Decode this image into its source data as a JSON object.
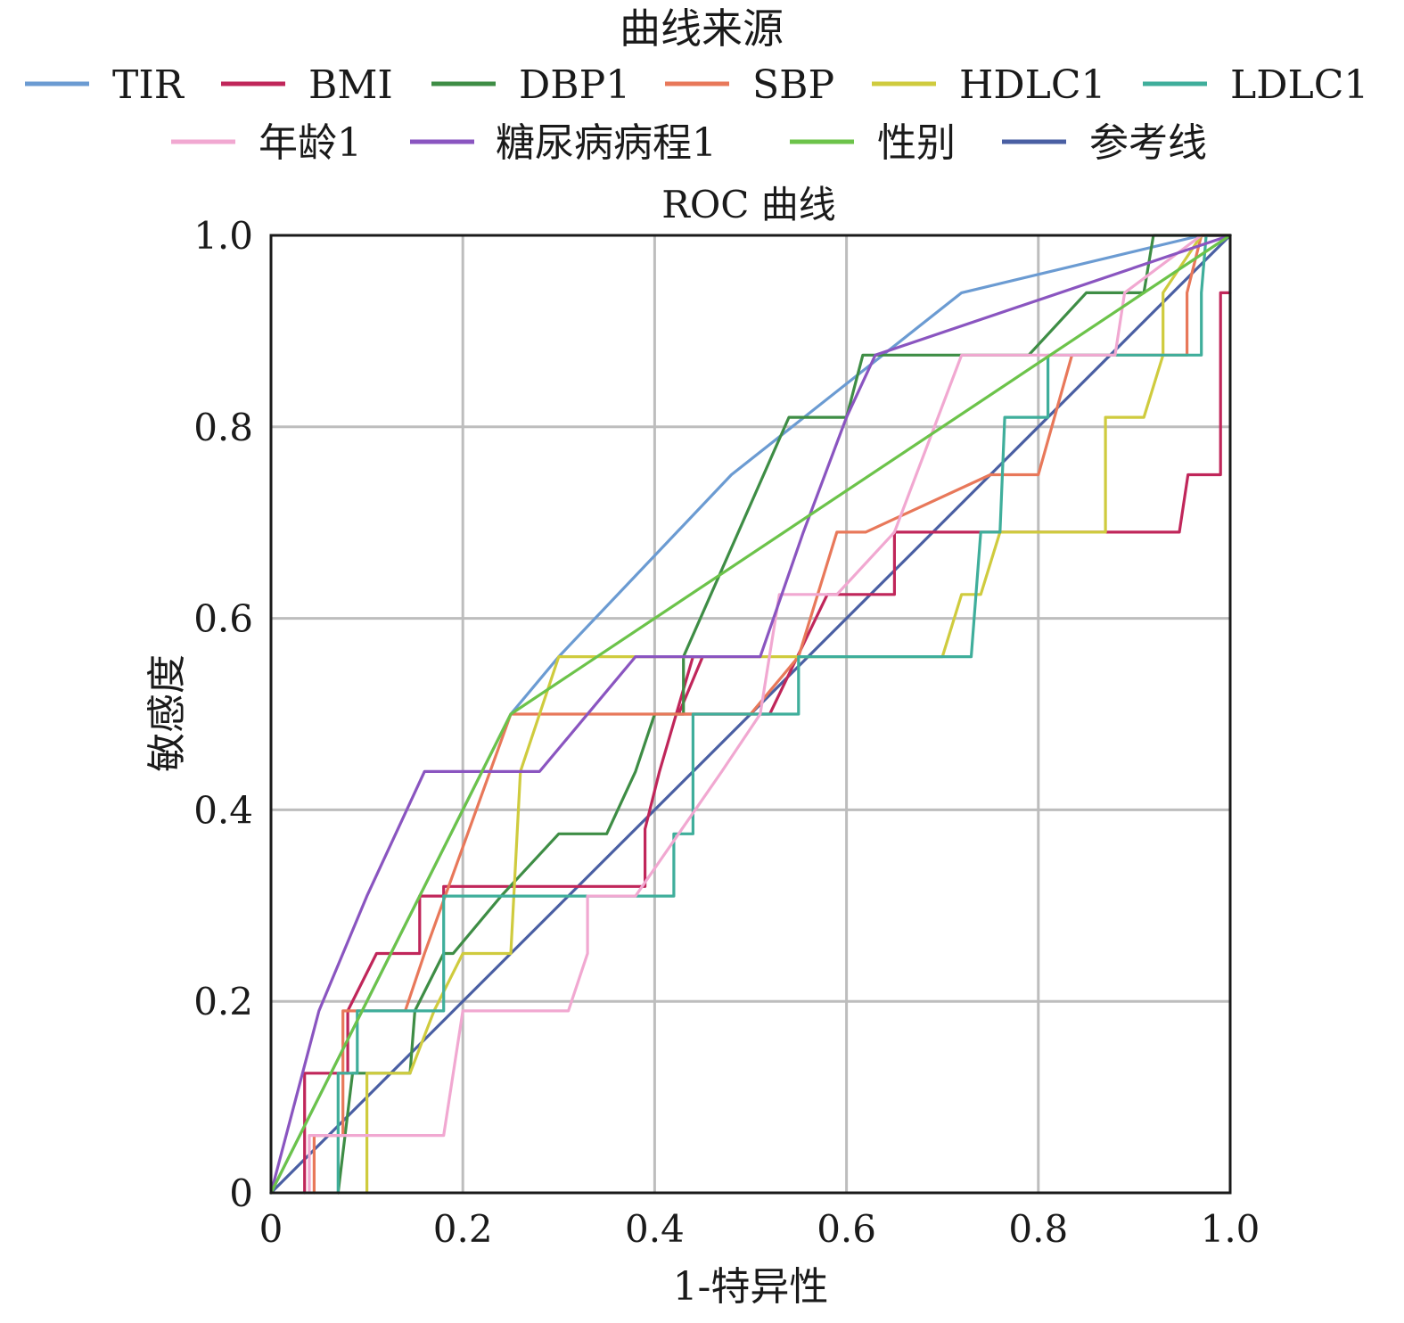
{
  "chart_data": {
    "type": "line",
    "title": "ROC 曲线",
    "legend_title": "曲线来源",
    "legend_position": "top",
    "xlabel": "1-特异性",
    "ylabel": "敏感度",
    "xlim": [
      0,
      1
    ],
    "ylim": [
      0,
      1
    ],
    "grid": true,
    "x_ticks": [
      {
        "value": 0,
        "label": "0"
      },
      {
        "value": 0.2,
        "label": "0.2"
      },
      {
        "value": 0.4,
        "label": "0.4"
      },
      {
        "value": 0.6,
        "label": "0.6"
      },
      {
        "value": 0.8,
        "label": "0.8"
      },
      {
        "value": 1.0,
        "label": "1.0"
      }
    ],
    "y_ticks": [
      {
        "value": 0,
        "label": "0"
      },
      {
        "value": 0.2,
        "label": "0.2"
      },
      {
        "value": 0.4,
        "label": "0.4"
      },
      {
        "value": 0.6,
        "label": "0.6"
      },
      {
        "value": 0.8,
        "label": "0.8"
      },
      {
        "value": 1.0,
        "label": "1.0"
      }
    ],
    "series": [
      {
        "name": "TIR",
        "color": "#6b9bd2",
        "points": [
          [
            0,
            0
          ],
          [
            0.25,
            0.5
          ],
          [
            0.3,
            0.56
          ],
          [
            0.48,
            0.75
          ],
          [
            0.72,
            0.94
          ],
          [
            0.97,
            1
          ],
          [
            1,
            1
          ]
        ]
      },
      {
        "name": "BMI",
        "color": "#c0265a",
        "points": [
          [
            0.035,
            0
          ],
          [
            0.035,
            0.125
          ],
          [
            0.08,
            0.125
          ],
          [
            0.08,
            0.19
          ],
          [
            0.11,
            0.25
          ],
          [
            0.155,
            0.25
          ],
          [
            0.155,
            0.31
          ],
          [
            0.18,
            0.31
          ],
          [
            0.18,
            0.32
          ],
          [
            0.39,
            0.32
          ],
          [
            0.39,
            0.38
          ],
          [
            0.405,
            0.44
          ],
          [
            0.44,
            0.56
          ],
          [
            0.45,
            0.56
          ],
          [
            0.425,
            0.5
          ],
          [
            0.52,
            0.5
          ],
          [
            0.58,
            0.625
          ],
          [
            0.65,
            0.625
          ],
          [
            0.65,
            0.69
          ],
          [
            0.947,
            0.69
          ],
          [
            0.956,
            0.75
          ],
          [
            0.99,
            0.75
          ],
          [
            0.99,
            0.94
          ],
          [
            1,
            0.94
          ]
        ]
      },
      {
        "name": "DBP1",
        "color": "#3e8d45",
        "points": [
          [
            0.07,
            0
          ],
          [
            0.085,
            0.125
          ],
          [
            0.145,
            0.125
          ],
          [
            0.15,
            0.19
          ],
          [
            0.18,
            0.25
          ],
          [
            0.19,
            0.25
          ],
          [
            0.24,
            0.31
          ],
          [
            0.3,
            0.375
          ],
          [
            0.35,
            0.375
          ],
          [
            0.38,
            0.44
          ],
          [
            0.4,
            0.5
          ],
          [
            0.43,
            0.5
          ],
          [
            0.43,
            0.56
          ],
          [
            0.54,
            0.81
          ],
          [
            0.6,
            0.81
          ],
          [
            0.617,
            0.875
          ],
          [
            0.79,
            0.875
          ],
          [
            0.85,
            0.94
          ],
          [
            0.91,
            0.94
          ],
          [
            0.92,
            1
          ],
          [
            1,
            1
          ]
        ]
      },
      {
        "name": "SBP",
        "color": "#e8785a",
        "points": [
          [
            0.045,
            0
          ],
          [
            0.045,
            0.06
          ],
          [
            0.075,
            0.06
          ],
          [
            0.075,
            0.19
          ],
          [
            0.1,
            0.19
          ],
          [
            0.14,
            0.19
          ],
          [
            0.16,
            0.25
          ],
          [
            0.25,
            0.5
          ],
          [
            0.4,
            0.5
          ],
          [
            0.42,
            0.5
          ],
          [
            0.5,
            0.5
          ],
          [
            0.55,
            0.56
          ],
          [
            0.59,
            0.69
          ],
          [
            0.62,
            0.69
          ],
          [
            0.75,
            0.75
          ],
          [
            0.8,
            0.75
          ],
          [
            0.835,
            0.875
          ],
          [
            0.955,
            0.875
          ],
          [
            0.955,
            0.94
          ],
          [
            0.97,
            1
          ],
          [
            1,
            1
          ]
        ]
      },
      {
        "name": "HDLC1",
        "color": "#cfcb3e",
        "points": [
          [
            0.1,
            0
          ],
          [
            0.1,
            0.125
          ],
          [
            0.145,
            0.125
          ],
          [
            0.17,
            0.19
          ],
          [
            0.2,
            0.25
          ],
          [
            0.25,
            0.25
          ],
          [
            0.26,
            0.44
          ],
          [
            0.3,
            0.56
          ],
          [
            0.45,
            0.56
          ],
          [
            0.7,
            0.56
          ],
          [
            0.72,
            0.625
          ],
          [
            0.74,
            0.625
          ],
          [
            0.76,
            0.69
          ],
          [
            0.87,
            0.69
          ],
          [
            0.87,
            0.81
          ],
          [
            0.91,
            0.81
          ],
          [
            0.93,
            0.875
          ],
          [
            0.93,
            0.94
          ],
          [
            0.97,
            1
          ],
          [
            1,
            1
          ]
        ]
      },
      {
        "name": "LDLC1",
        "color": "#3fae9b",
        "points": [
          [
            0.07,
            0
          ],
          [
            0.07,
            0.125
          ],
          [
            0.09,
            0.125
          ],
          [
            0.09,
            0.19
          ],
          [
            0.18,
            0.19
          ],
          [
            0.18,
            0.31
          ],
          [
            0.42,
            0.31
          ],
          [
            0.42,
            0.375
          ],
          [
            0.44,
            0.375
          ],
          [
            0.44,
            0.5
          ],
          [
            0.55,
            0.5
          ],
          [
            0.55,
            0.56
          ],
          [
            0.73,
            0.56
          ],
          [
            0.74,
            0.69
          ],
          [
            0.76,
            0.69
          ],
          [
            0.765,
            0.81
          ],
          [
            0.81,
            0.81
          ],
          [
            0.81,
            0.875
          ],
          [
            0.97,
            0.875
          ],
          [
            0.97,
            0.94
          ],
          [
            0.975,
            1
          ],
          [
            1,
            1
          ]
        ]
      },
      {
        "name": "年龄1",
        "color": "#f1a8d1",
        "points": [
          [
            0.04,
            0
          ],
          [
            0.04,
            0.06
          ],
          [
            0.18,
            0.06
          ],
          [
            0.2,
            0.19
          ],
          [
            0.31,
            0.19
          ],
          [
            0.33,
            0.25
          ],
          [
            0.33,
            0.31
          ],
          [
            0.38,
            0.31
          ],
          [
            0.47,
            0.44
          ],
          [
            0.51,
            0.5
          ],
          [
            0.53,
            0.625
          ],
          [
            0.59,
            0.625
          ],
          [
            0.65,
            0.69
          ],
          [
            0.72,
            0.875
          ],
          [
            0.88,
            0.875
          ],
          [
            0.89,
            0.94
          ],
          [
            0.97,
            1
          ],
          [
            1,
            1
          ]
        ]
      },
      {
        "name": "糖尿病病程1",
        "color": "#8a55c0",
        "points": [
          [
            0,
            0
          ],
          [
            0.05,
            0.19
          ],
          [
            0.1,
            0.31
          ],
          [
            0.16,
            0.44
          ],
          [
            0.28,
            0.44
          ],
          [
            0.38,
            0.56
          ],
          [
            0.51,
            0.56
          ],
          [
            0.555,
            0.69
          ],
          [
            0.6,
            0.81
          ],
          [
            0.63,
            0.875
          ],
          [
            1,
            1
          ]
        ]
      },
      {
        "name": "性别",
        "color": "#6cc34a",
        "points": [
          [
            0,
            0
          ],
          [
            0.25,
            0.5
          ],
          [
            1,
            1
          ]
        ]
      },
      {
        "name": "参考线",
        "color": "#4a5fa3",
        "points": [
          [
            0,
            0
          ],
          [
            1,
            1
          ]
        ]
      }
    ]
  }
}
